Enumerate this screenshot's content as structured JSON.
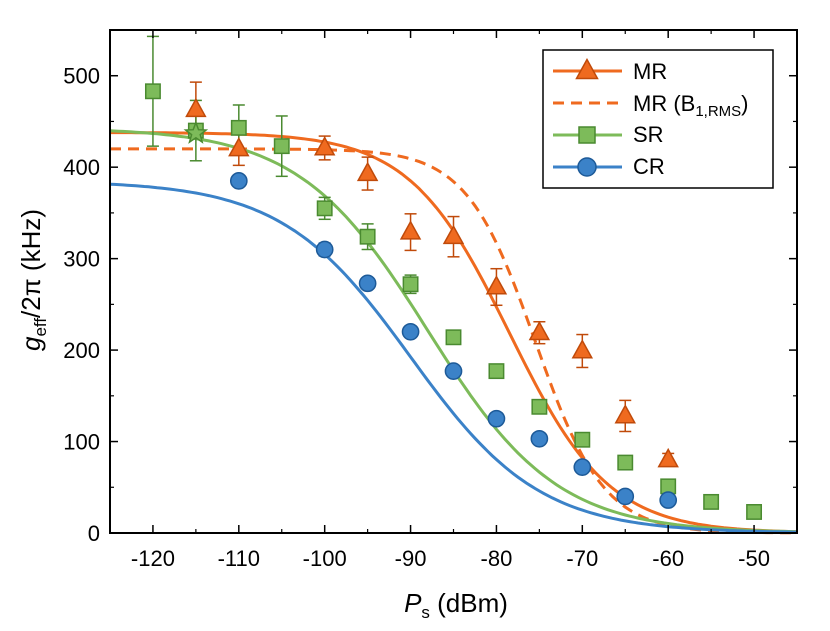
{
  "chart_data": {
    "type": "scatter",
    "xlabel": {
      "main": "P",
      "sub": "s",
      "unit": " (dBm)"
    },
    "ylabel": {
      "main": "g",
      "sub": "eff",
      "rest": "/2π (kHz)"
    },
    "xlim": [
      -125,
      -45
    ],
    "ylim": [
      0,
      550
    ],
    "xticks": [
      -120,
      -110,
      -100,
      -90,
      -80,
      -70,
      -60,
      -50
    ],
    "yticks": [
      0,
      100,
      200,
      300,
      400,
      500
    ],
    "xtick_labels": [
      "-120",
      "-110",
      "-100",
      "-90",
      "-80",
      "-70",
      "-60",
      "-50"
    ],
    "ytick_labels": [
      "0",
      "100",
      "200",
      "300",
      "400",
      "500"
    ],
    "legend_position": "top-right",
    "series": [
      {
        "name": "MR",
        "legend_label": "MR",
        "marker": "triangle",
        "line": "solid",
        "color": "#ef6a1f",
        "edge": "#c04a0a",
        "points": [
          {
            "x": -115,
            "y": 463,
            "err": 30
          },
          {
            "x": -110,
            "y": 420,
            "err": 18
          },
          {
            "x": -100,
            "y": 421,
            "err": 13
          },
          {
            "x": -95,
            "y": 393,
            "err": 18
          },
          {
            "x": -90,
            "y": 329,
            "err": 20
          },
          {
            "x": -85,
            "y": 324,
            "err": 22
          },
          {
            "x": -80,
            "y": 269,
            "err": 20
          },
          {
            "x": -75,
            "y": 219,
            "err": 12
          },
          {
            "x": -70,
            "y": 199,
            "err": 18
          },
          {
            "x": -65,
            "y": 128,
            "err": 17
          },
          {
            "x": -60,
            "y": 80,
            "err": 7
          }
        ],
        "fit": {
          "g0": 438,
          "p_half": -78.5,
          "width": 5.8
        }
      },
      {
        "name": "MR (B1,RMS)",
        "legend_label": "MR (B",
        "legend_sub": "1,RMS",
        "legend_close": ")",
        "marker": "none",
        "line": "dashed",
        "color": "#ef6a1f",
        "points": [],
        "fit": {
          "g0": 420,
          "p_half": -75.5,
          "width": 4.0
        }
      },
      {
        "name": "SR",
        "legend_label": "SR",
        "marker": "square",
        "line": "solid",
        "color": "#7dbb5a",
        "edge": "#4a8a30",
        "points": [
          {
            "x": -120,
            "y": 483,
            "err": 60
          },
          {
            "x": -115,
            "y": 440,
            "err": 33
          },
          {
            "x": -110,
            "y": 443,
            "err": 25
          },
          {
            "x": -105,
            "y": 423,
            "err": 33
          },
          {
            "x": -100,
            "y": 355,
            "err": 12
          },
          {
            "x": -95,
            "y": 324,
            "err": 14
          },
          {
            "x": -90,
            "y": 272,
            "err": 10
          },
          {
            "x": -85,
            "y": 214,
            "err": 7
          },
          {
            "x": -80,
            "y": 177,
            "err": 6
          },
          {
            "x": -75,
            "y": 138,
            "err": 6
          },
          {
            "x": -70,
            "y": 102,
            "err": 6
          },
          {
            "x": -65,
            "y": 77,
            "err": 6
          },
          {
            "x": -60,
            "y": 51,
            "err": 7
          },
          {
            "x": -55,
            "y": 34,
            "err": 6
          },
          {
            "x": -50,
            "y": 23,
            "err": 6
          }
        ],
        "fit": {
          "g0": 443,
          "p_half": -88,
          "width": 7.5
        }
      },
      {
        "name": "CR",
        "legend_label": "CR",
        "marker": "circle",
        "line": "solid",
        "color": "#3b82c8",
        "edge": "#1d5a98",
        "points": [
          {
            "x": -110,
            "y": 385,
            "err": 6
          },
          {
            "x": -100,
            "y": 310,
            "err": 7
          },
          {
            "x": -95,
            "y": 273,
            "err": 5
          },
          {
            "x": -90,
            "y": 220,
            "err": 5
          },
          {
            "x": -85,
            "y": 177,
            "err": 5
          },
          {
            "x": -80,
            "y": 125,
            "err": 5
          },
          {
            "x": -75,
            "y": 103,
            "err": 5
          },
          {
            "x": -70,
            "y": 72,
            "err": 4
          },
          {
            "x": -65,
            "y": 40,
            "err": 4
          },
          {
            "x": -60,
            "y": 36,
            "err": 6
          }
        ],
        "fit": {
          "g0": 385,
          "p_half": -90,
          "width": 7.5
        }
      }
    ],
    "star_marker": {
      "x": -115,
      "y": 437,
      "color": "#7dbb5a",
      "edge": "#4a8a30"
    }
  }
}
